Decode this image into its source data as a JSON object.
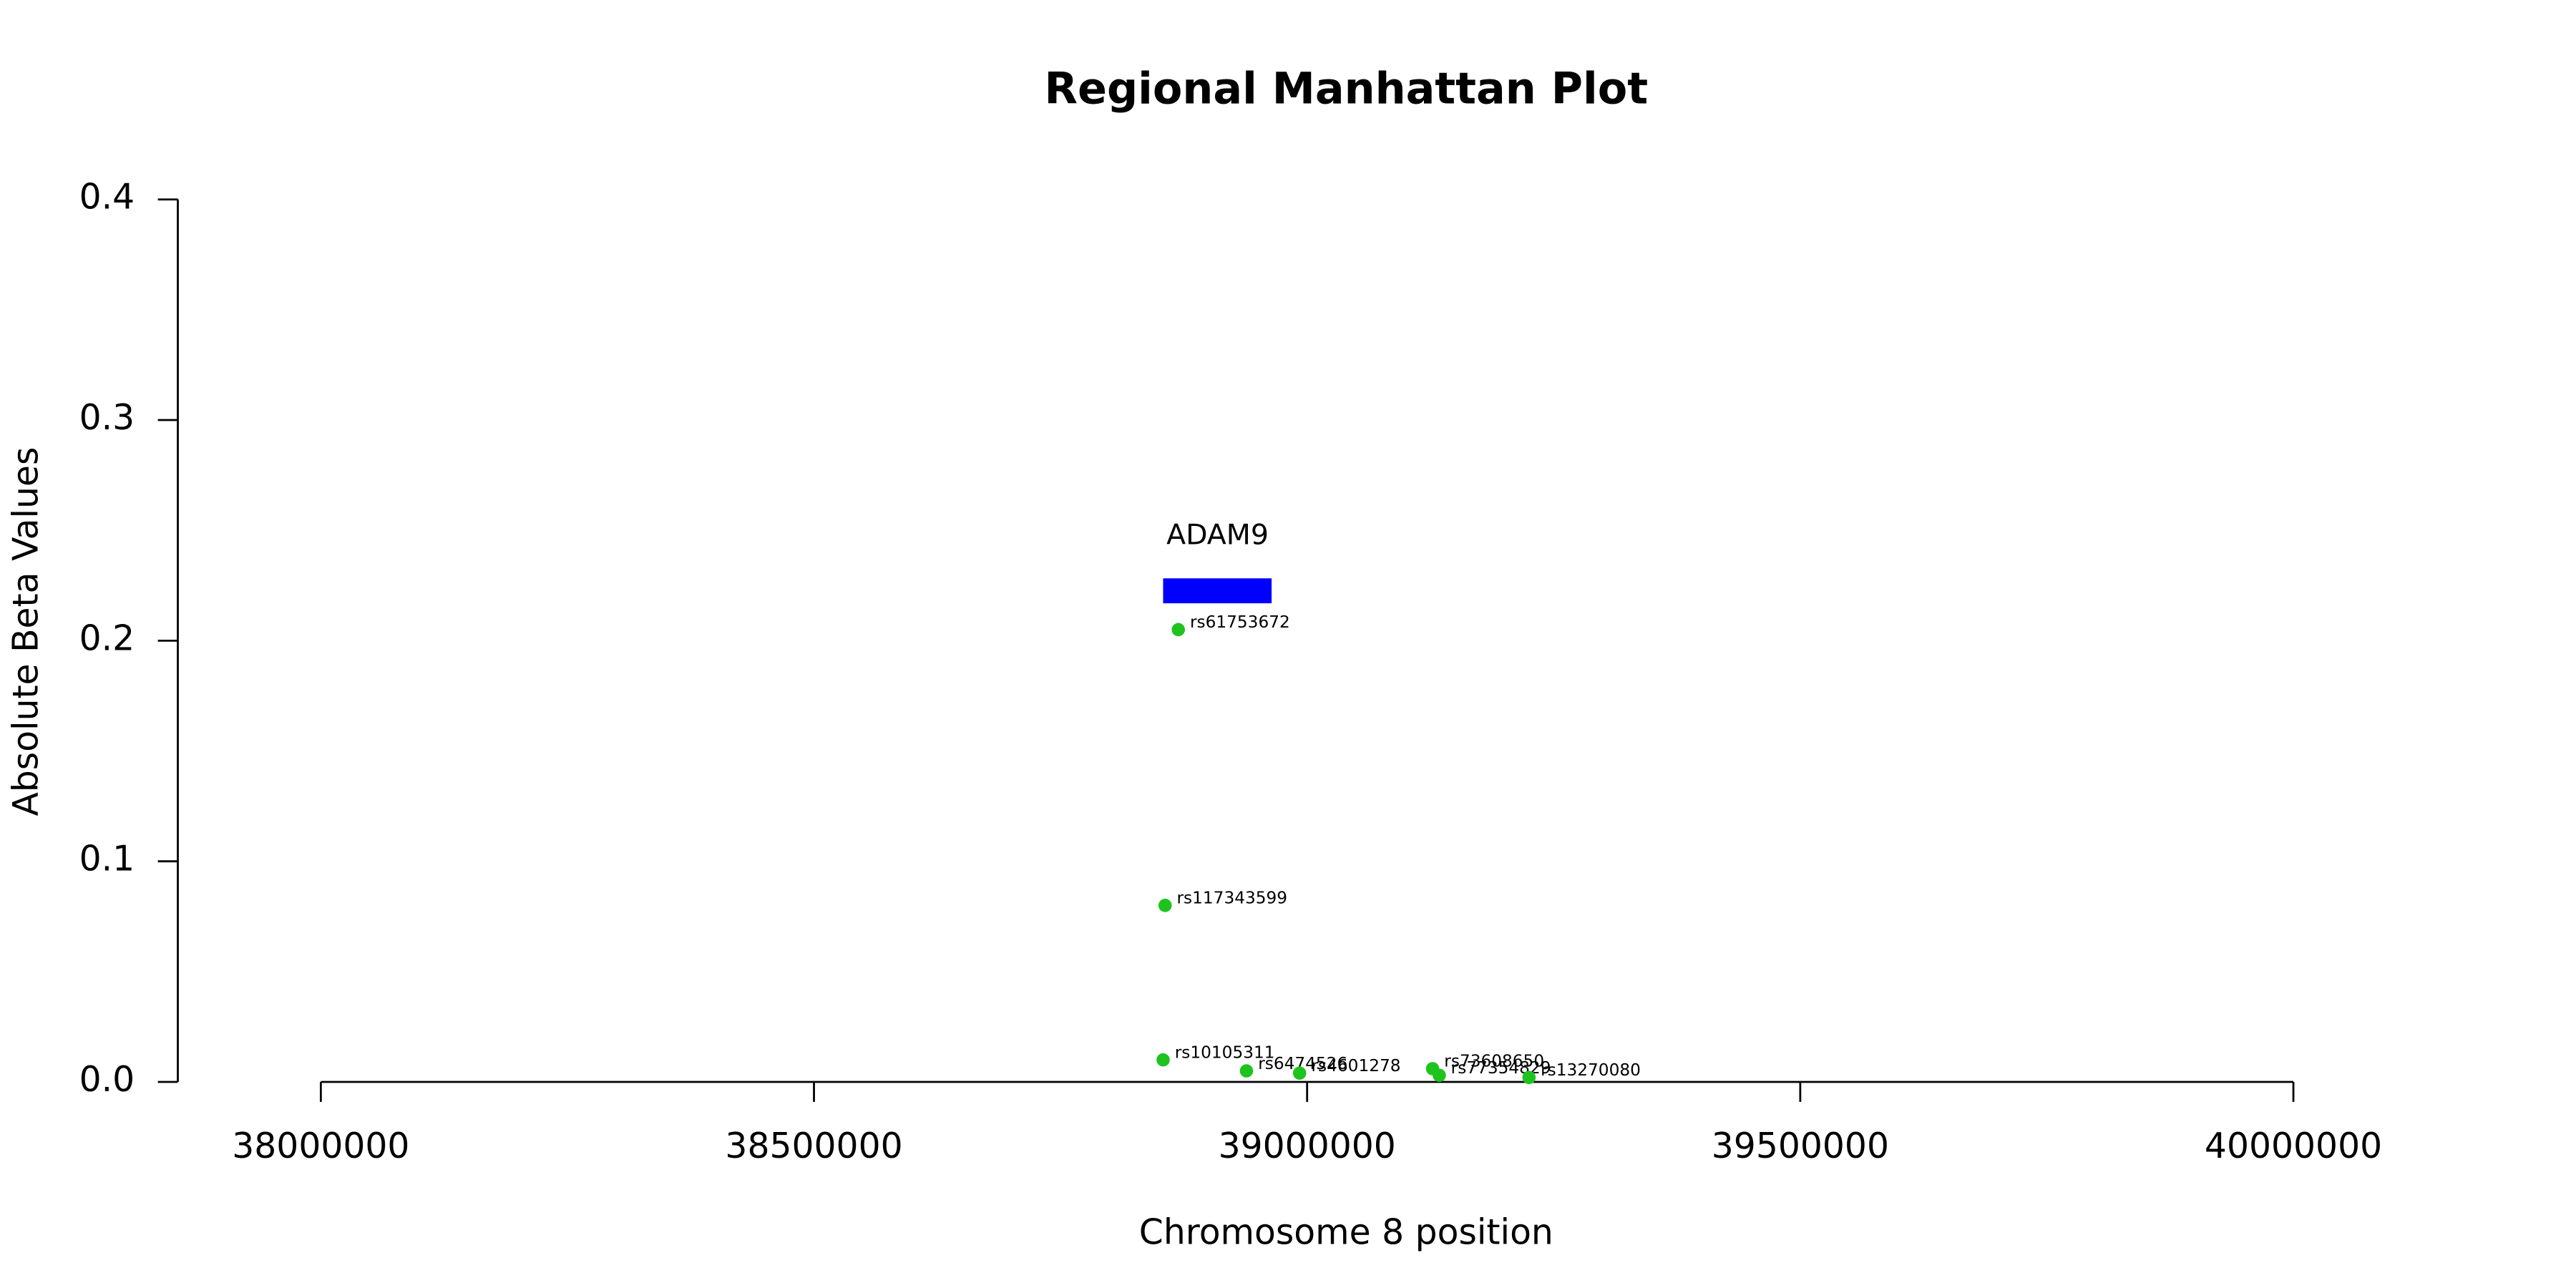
{
  "chart_data": {
    "type": "scatter",
    "title": "Regional Manhattan Plot",
    "x_label": "Chromosome 8 position",
    "y_label": "Absolute Beta Values",
    "x": [
      38869400,
      38856000,
      38854000,
      38938500,
      38992400,
      39127200,
      39134000,
      39225000
    ],
    "values": [
      0.205,
      0.08,
      0.01,
      0.005,
      0.004,
      0.006,
      0.003,
      0.002
    ],
    "point_labels": [
      "rs61753672",
      "rs117343599",
      "rs10105311",
      "rs6474526",
      "rs4601278",
      "rs73608650",
      "rs77354829",
      "rs13270080"
    ],
    "color": "#1ec31e",
    "gene": {
      "name": "ADAM9",
      "start": 38854000,
      "end": 38964000,
      "color": "#0000ff"
    },
    "xlim": [
      37855000,
      40145000
    ],
    "ylim": [
      0,
      0.4
    ],
    "xticks": [
      38000000,
      38500000,
      39000000,
      39500000,
      40000000
    ],
    "yticks": [
      {
        "value": 0,
        "label": "0.0"
      },
      0.1,
      0.2,
      0.3,
      0.4
    ]
  }
}
